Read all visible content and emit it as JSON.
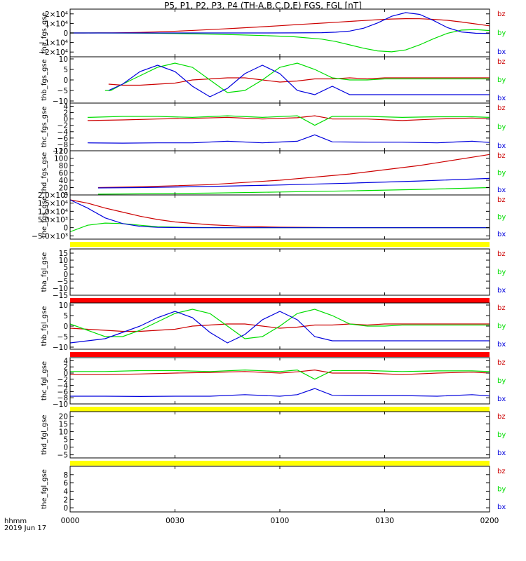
{
  "title": "P5, P1, P2, P3, P4 (TH-A,B,C,D,E) FGS, FGL [nT]",
  "footer": {
    "time_label": "hhmm",
    "date_label": "2019 Jun 17"
  },
  "colors": {
    "bx": "#0000dd",
    "by": "#00dd00",
    "bz": "#cc0000",
    "bar_yellow": "#ffff00",
    "bar_red": "#ff0000"
  },
  "chart_data": [
    {
      "type": "line",
      "ylabel": "tha_fgs_gse",
      "ylim": [
        -25000,
        25000
      ],
      "yticks": [
        "2×10⁴",
        "1×10⁴",
        "0",
        "−1×10⁴",
        "−2×10⁴"
      ],
      "ytick_values": [
        20000,
        10000,
        0,
        -10000,
        -20000
      ],
      "series": [
        {
          "name": "bz",
          "x": [
            0,
            120,
            240,
            480,
            720,
            960,
            1200,
            1440,
            1680,
            1920,
            2160,
            2400,
            2640,
            2880,
            3120,
            3360,
            3600,
            3840,
            4080,
            4320,
            4560,
            4800,
            5040,
            5280,
            5520,
            5760,
            6000,
            6240,
            6480,
            6720,
            6960,
            7200
          ],
          "values": [
            0,
            0,
            0,
            50,
            100,
            300,
            600,
            1000,
            1500,
            2100,
            2800,
            3500,
            4300,
            5100,
            5900,
            6700,
            7600,
            8500,
            9400,
            10300,
            11200,
            12100,
            13000,
            13900,
            14600,
            15000,
            14900,
            14300,
            13200,
            11500,
            9500,
            7500
          ]
        },
        {
          "name": "by",
          "x": [
            0,
            480,
            960,
            1440,
            1920,
            2400,
            2880,
            3360,
            3840,
            4320,
            4560,
            4800,
            5040,
            5280,
            5520,
            5760,
            6000,
            6240,
            6480,
            6720,
            6960,
            7200
          ],
          "values": [
            0,
            0,
            -100,
            -300,
            -700,
            -1200,
            -1900,
            -2800,
            -4000,
            -6500,
            -9000,
            -12500,
            -16000,
            -18800,
            -19800,
            -17800,
            -12500,
            -6000,
            -300,
            3000,
            3600,
            2500
          ]
        },
        {
          "name": "bx",
          "x": [
            0,
            960,
            1920,
            2880,
            3360,
            3840,
            4320,
            4560,
            4800,
            5040,
            5280,
            5520,
            5760,
            6000,
            6240,
            6480,
            6720,
            6960,
            7200
          ],
          "values": [
            0,
            0,
            0,
            0,
            0,
            100,
            300,
            800,
            2000,
            5000,
            10500,
            17500,
            21300,
            19500,
            13000,
            5500,
            1000,
            -300,
            -500
          ]
        }
      ]
    },
    {
      "type": "line",
      "ylabel": "thb_fgs_gse",
      "ylim": [
        -11,
        11
      ],
      "yticks": [
        "10",
        "5",
        "0",
        "−5",
        "−10"
      ],
      "ytick_values": [
        10,
        5,
        0,
        -5,
        -10
      ],
      "series": [
        {
          "name": "bz",
          "x": [
            660,
            900,
            1200,
            1500,
            1800,
            2100,
            2400,
            2700,
            3000,
            3300,
            3600,
            3900,
            4200,
            4500,
            4800,
            5100,
            5400,
            5700,
            6000,
            6300,
            6600,
            6900,
            7200
          ],
          "values": [
            -2,
            -2.5,
            -2.5,
            -2,
            -1.5,
            0,
            0.5,
            1,
            1,
            0,
            -1,
            -0.5,
            0.5,
            0.5,
            1,
            0.5,
            1,
            1,
            1,
            1,
            1,
            1,
            1
          ]
        },
        {
          "name": "by",
          "x": [
            600,
            700,
            900,
            1200,
            1500,
            1800,
            2100,
            2400,
            2700,
            3000,
            3300,
            3600,
            3900,
            4200,
            4500,
            4800,
            5100,
            5400,
            5700,
            6000,
            6300,
            6600,
            6900,
            7200
          ],
          "values": [
            -5,
            -5,
            -2,
            2,
            6,
            8,
            6,
            0,
            -6,
            -5,
            0,
            6,
            8,
            5,
            1,
            0,
            0,
            0.5,
            0.5,
            0.5,
            0.5,
            0.5,
            0.5,
            0.5
          ]
        },
        {
          "name": "bx",
          "x": [
            660,
            900,
            1200,
            1500,
            1800,
            2100,
            2400,
            2700,
            3000,
            3300,
            3600,
            3900,
            4200,
            4500,
            4800,
            5100,
            5400,
            5700,
            6000,
            6300,
            6600,
            6900,
            7200
          ],
          "values": [
            -5,
            -2,
            4,
            7,
            4,
            -3,
            -8,
            -4,
            3,
            7,
            3,
            -5,
            -7,
            -3,
            -7,
            -7,
            -7,
            -7,
            -7,
            -7,
            -7,
            -7,
            -7
          ]
        }
      ]
    },
    {
      "type": "line",
      "ylabel": "thc_fgs_gse",
      "ylim": [
        -10,
        5
      ],
      "yticks": [
        "4",
        "2",
        "0",
        "−2",
        "−4",
        "−6",
        "−8",
        "−10"
      ],
      "ytick_values": [
        4,
        2,
        0,
        -2,
        -4,
        -6,
        -8,
        -10
      ],
      "series": [
        {
          "name": "bz",
          "x": [
            300,
            900,
            1500,
            2100,
            2700,
            3300,
            3900,
            4200,
            4500,
            5100,
            5700,
            6300,
            6900,
            7200
          ],
          "values": [
            -0.5,
            -0.3,
            0,
            0.2,
            0.5,
            0,
            0.4,
            1,
            0,
            0,
            -0.5,
            0,
            0.3,
            0
          ]
        },
        {
          "name": "by",
          "x": [
            300,
            900,
            1500,
            2100,
            2700,
            3300,
            3900,
            4200,
            4500,
            5100,
            5700,
            6300,
            6900,
            7200
          ],
          "values": [
            0.5,
            0.8,
            0.8,
            0.5,
            1,
            0.5,
            1,
            -2,
            0.8,
            0.8,
            0.5,
            0.7,
            0.7,
            0.5
          ]
        },
        {
          "name": "bx",
          "x": [
            300,
            900,
            1500,
            2100,
            2700,
            3300,
            3900,
            4200,
            4500,
            5100,
            5700,
            6300,
            6900,
            7200
          ],
          "values": [
            -7.5,
            -7.6,
            -7.5,
            -7.5,
            -7,
            -7.5,
            -7,
            -5,
            -7.2,
            -7.3,
            -7.3,
            -7.5,
            -7,
            -7.4
          ]
        }
      ]
    },
    {
      "type": "line",
      "ylabel": "thd_fgs_gse",
      "ylim": [
        0,
        120
      ],
      "yticks": [
        "120",
        "100",
        "80",
        "60",
        "40",
        "20",
        "0"
      ],
      "ytick_values": [
        120,
        100,
        80,
        60,
        40,
        20,
        0
      ],
      "series": [
        {
          "name": "bz",
          "x": [
            480,
            1200,
            2400,
            3600,
            4800,
            6000,
            7200
          ],
          "values": [
            20,
            22,
            28,
            40,
            57,
            80,
            110
          ]
        },
        {
          "name": "by",
          "x": [
            480,
            1200,
            2400,
            3600,
            4800,
            6000,
            7200
          ],
          "values": [
            2,
            3,
            5,
            8,
            11,
            15,
            20
          ]
        },
        {
          "name": "bx",
          "x": [
            480,
            1200,
            2400,
            3600,
            4800,
            6000,
            7200
          ],
          "values": [
            19,
            20,
            23,
            27,
            32,
            38,
            45
          ]
        }
      ]
    },
    {
      "type": "line",
      "ylabel": "the_fgs_gse",
      "ylim": [
        -7000,
        20000
      ],
      "yticks": [
        "2.0×10⁴",
        "1.5×10⁴",
        "1.0×10⁴",
        "5.0×10³",
        "0",
        "−5.0×10³"
      ],
      "ytick_values": [
        20000,
        15000,
        10000,
        5000,
        0,
        -5000
      ],
      "series": [
        {
          "name": "bz",
          "x": [
            0,
            300,
            600,
            900,
            1200,
            1500,
            1800,
            2400,
            3000,
            3600,
            4200,
            4800,
            7200
          ],
          "values": [
            17000,
            15000,
            12000,
            9500,
            7000,
            5000,
            3500,
            1800,
            800,
            300,
            100,
            0,
            0
          ]
        },
        {
          "name": "by",
          "x": [
            0,
            300,
            600,
            900,
            1200,
            1500,
            2100,
            2700,
            3300,
            4800,
            7200
          ],
          "values": [
            -2500,
            1500,
            2800,
            2500,
            1500,
            600,
            100,
            0,
            0,
            0,
            0
          ]
        },
        {
          "name": "bx",
          "x": [
            0,
            300,
            600,
            900,
            1200,
            1500,
            2100,
            2700,
            7200
          ],
          "values": [
            17000,
            12000,
            6000,
            2500,
            800,
            200,
            0,
            0,
            0
          ]
        }
      ]
    },
    {
      "type": "line",
      "ylabel": "tha_fgl_gse",
      "ylim": [
        -15,
        18
      ],
      "yticks": [
        "15",
        "10",
        "5",
        "0",
        "−5",
        "−10",
        "−15"
      ],
      "ytick_values": [
        15,
        10,
        5,
        0,
        -5,
        -10,
        -15
      ],
      "series": []
    },
    {
      "type": "line",
      "ylabel": "thb_fgl_gse",
      "ylim": [
        -11,
        11
      ],
      "yticks": [
        "10",
        "5",
        "0",
        "−5",
        "−10"
      ],
      "ytick_values": [
        10,
        5,
        0,
        -5,
        -10
      ],
      "series": [
        {
          "name": "bz",
          "x": [
            0,
            300,
            600,
            900,
            1200,
            1500,
            1800,
            2100,
            2400,
            2700,
            3000,
            3300,
            3600,
            3900,
            4200,
            4500,
            4800,
            5100,
            5400,
            5700,
            6000,
            6300,
            6600,
            6900,
            7200
          ],
          "values": [
            -1,
            -1.5,
            -2,
            -2.5,
            -2.5,
            -2,
            -1.5,
            0,
            0.5,
            1,
            1,
            0,
            -1,
            -0.5,
            0.5,
            0.5,
            1,
            0.5,
            1,
            1,
            1,
            1,
            1,
            1,
            1
          ]
        },
        {
          "name": "by",
          "x": [
            0,
            300,
            600,
            900,
            1200,
            1500,
            1800,
            2100,
            2400,
            2700,
            3000,
            3300,
            3600,
            3900,
            4200,
            4500,
            4800,
            5100,
            5400,
            5700,
            6000,
            6300,
            6600,
            6900,
            7200
          ],
          "values": [
            1,
            -2,
            -5,
            -5,
            -2,
            2,
            6,
            8,
            6,
            0,
            -6,
            -5,
            0,
            6,
            8,
            5,
            1,
            0,
            0,
            0.5,
            0.5,
            0.5,
            0.5,
            0.5,
            0.5
          ]
        },
        {
          "name": "bx",
          "x": [
            0,
            300,
            600,
            900,
            1200,
            1500,
            1800,
            2100,
            2400,
            2700,
            3000,
            3300,
            3600,
            3900,
            4200,
            4500,
            4800,
            5100,
            5400,
            5700,
            6000,
            6300,
            6600,
            6900,
            7200
          ],
          "values": [
            -8,
            -7,
            -6,
            -3,
            0,
            4,
            7,
            4,
            -3,
            -8,
            -4,
            3,
            7,
            3,
            -5,
            -7,
            -7,
            -7,
            -7,
            -7,
            -7,
            -7,
            -7,
            -7,
            -7
          ]
        }
      ]
    },
    {
      "type": "line",
      "ylabel": "thc_fgl_gse",
      "ylim": [
        -10,
        5
      ],
      "yticks": [
        "4",
        "2",
        "0",
        "−2",
        "−4",
        "−6",
        "−8",
        "−10"
      ],
      "ytick_values": [
        4,
        2,
        0,
        -2,
        -4,
        -6,
        -8,
        -10
      ],
      "series": [
        {
          "name": "bz",
          "x": [
            0,
            600,
            1200,
            1800,
            2400,
            3000,
            3600,
            3900,
            4200,
            4500,
            5100,
            5700,
            6300,
            6900,
            7200
          ],
          "values": [
            -0.5,
            -0.5,
            -0.3,
            0,
            0.2,
            0.5,
            0,
            0.4,
            1,
            0,
            0,
            -0.5,
            0,
            0.3,
            0
          ]
        },
        {
          "name": "by",
          "x": [
            0,
            600,
            1200,
            1800,
            2400,
            3000,
            3600,
            3900,
            4200,
            4500,
            5100,
            5700,
            6300,
            6900,
            7200
          ],
          "values": [
            0.5,
            0.5,
            0.8,
            0.8,
            0.5,
            1,
            0.5,
            1,
            -2,
            0.8,
            0.8,
            0.5,
            0.7,
            0.7,
            0.5
          ]
        },
        {
          "name": "bx",
          "x": [
            0,
            600,
            1200,
            1800,
            2400,
            3000,
            3600,
            3900,
            4200,
            4500,
            5100,
            5700,
            6300,
            6900,
            7200
          ],
          "values": [
            -7.5,
            -7.5,
            -7.6,
            -7.5,
            -7.5,
            -7,
            -7.5,
            -7,
            -5,
            -7.2,
            -7.3,
            -7.3,
            -7.5,
            -7,
            -7.4
          ]
        }
      ]
    },
    {
      "type": "line",
      "ylabel": "thd_fgl_gse",
      "ylim": [
        -7,
        23
      ],
      "yticks": [
        "20",
        "15",
        "10",
        "5",
        "0",
        "−5"
      ],
      "ytick_values": [
        20,
        15,
        10,
        5,
        0,
        -5
      ],
      "series": []
    },
    {
      "type": "line",
      "ylabel": "the_fgl_gse",
      "ylim": [
        -1,
        10
      ],
      "yticks": [
        "8",
        "6",
        "4",
        "2",
        "0"
      ],
      "ytick_values": [
        8,
        6,
        4,
        2,
        0
      ],
      "series": []
    }
  ],
  "xaxis": {
    "tick_labels": [
      "0000",
      "0030",
      "0100",
      "0130",
      "0200"
    ],
    "tick_values": [
      0,
      1800,
      3600,
      5400,
      7200
    ],
    "range_seconds": [
      0,
      7200
    ]
  },
  "legend": [
    "bz",
    "by",
    "bx"
  ]
}
